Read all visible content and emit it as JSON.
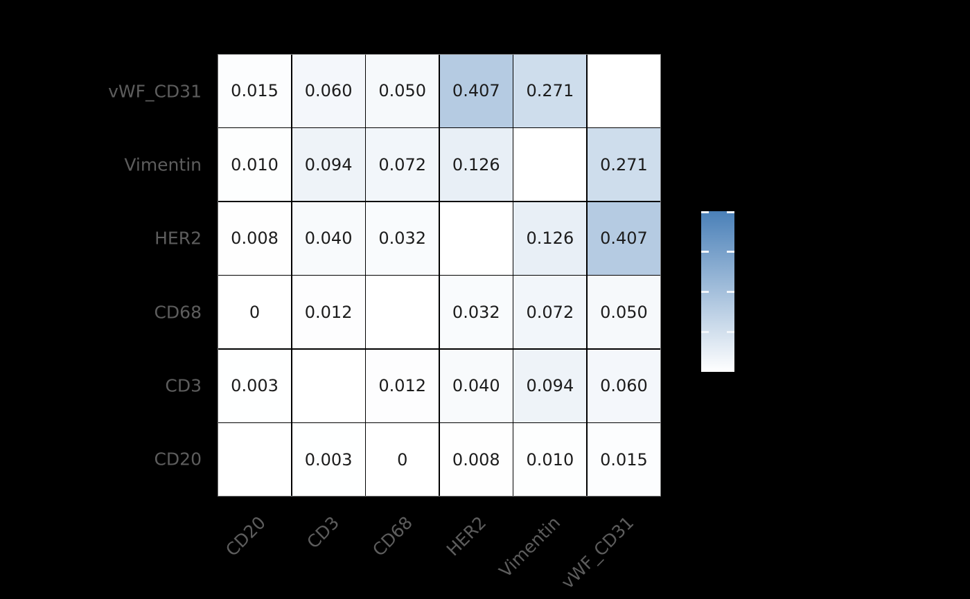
{
  "figure": {
    "background_color": "#000000",
    "heatmap_outline_color": "#777777",
    "grid_line_color": "#000000",
    "axis_label_color": "#5d5d5d",
    "cell_text_color": "#1c1c1c"
  },
  "chart_data": {
    "type": "heatmap",
    "title": "",
    "x_categories": [
      "CD20",
      "CD3",
      "CD68",
      "HER2",
      "Vimentin",
      "vWF_CD31"
    ],
    "y_categories_top_to_bottom": [
      "vWF_CD31",
      "Vimentin",
      "HER2",
      "CD68",
      "CD3",
      "CD20"
    ],
    "values": [
      [
        0.015,
        0.06,
        0.05,
        0.407,
        0.271,
        null
      ],
      [
        0.01,
        0.094,
        0.072,
        0.126,
        null,
        0.271
      ],
      [
        0.008,
        0.04,
        0.032,
        null,
        0.126,
        0.407
      ],
      [
        0,
        0.012,
        null,
        0.032,
        0.072,
        0.05
      ],
      [
        0.003,
        null,
        0.012,
        0.04,
        0.094,
        0.06
      ],
      [
        null,
        0.003,
        0,
        0.008,
        0.01,
        0.015
      ]
    ],
    "cell_labels": [
      [
        "0.015",
        "0.060",
        "0.050",
        "0.407",
        "0.271",
        ""
      ],
      [
        "0.010",
        "0.094",
        "0.072",
        "0.126",
        "",
        "0.271"
      ],
      [
        "0.008",
        "0.040",
        "0.032",
        "",
        "0.126",
        "0.407"
      ],
      [
        "0",
        "0.012",
        "",
        "0.032",
        "0.072",
        "0.050"
      ],
      [
        "0.003",
        "",
        "0.012",
        "0.040",
        "0.094",
        "0.060"
      ],
      [
        "",
        "0.003",
        "0",
        "0.008",
        "0.010",
        "0.015"
      ]
    ],
    "diagonal_blank": true,
    "color_scale": {
      "min_value": 0,
      "max_value": 1,
      "min_color": "#ffffff",
      "max_color": "#4a80b8"
    },
    "colorbar": {
      "orientation": "vertical",
      "gradient_top_color": "#4a80b8",
      "gradient_bottom_color": "#ffffff",
      "tick_color": "#f2f6fb",
      "tick_fractions_from_top": [
        0,
        0.25,
        0.5,
        0.75
      ],
      "tick_labels_visible": false
    },
    "x_tick_rotation_deg": 45,
    "grid": true,
    "legend_position": "right"
  }
}
